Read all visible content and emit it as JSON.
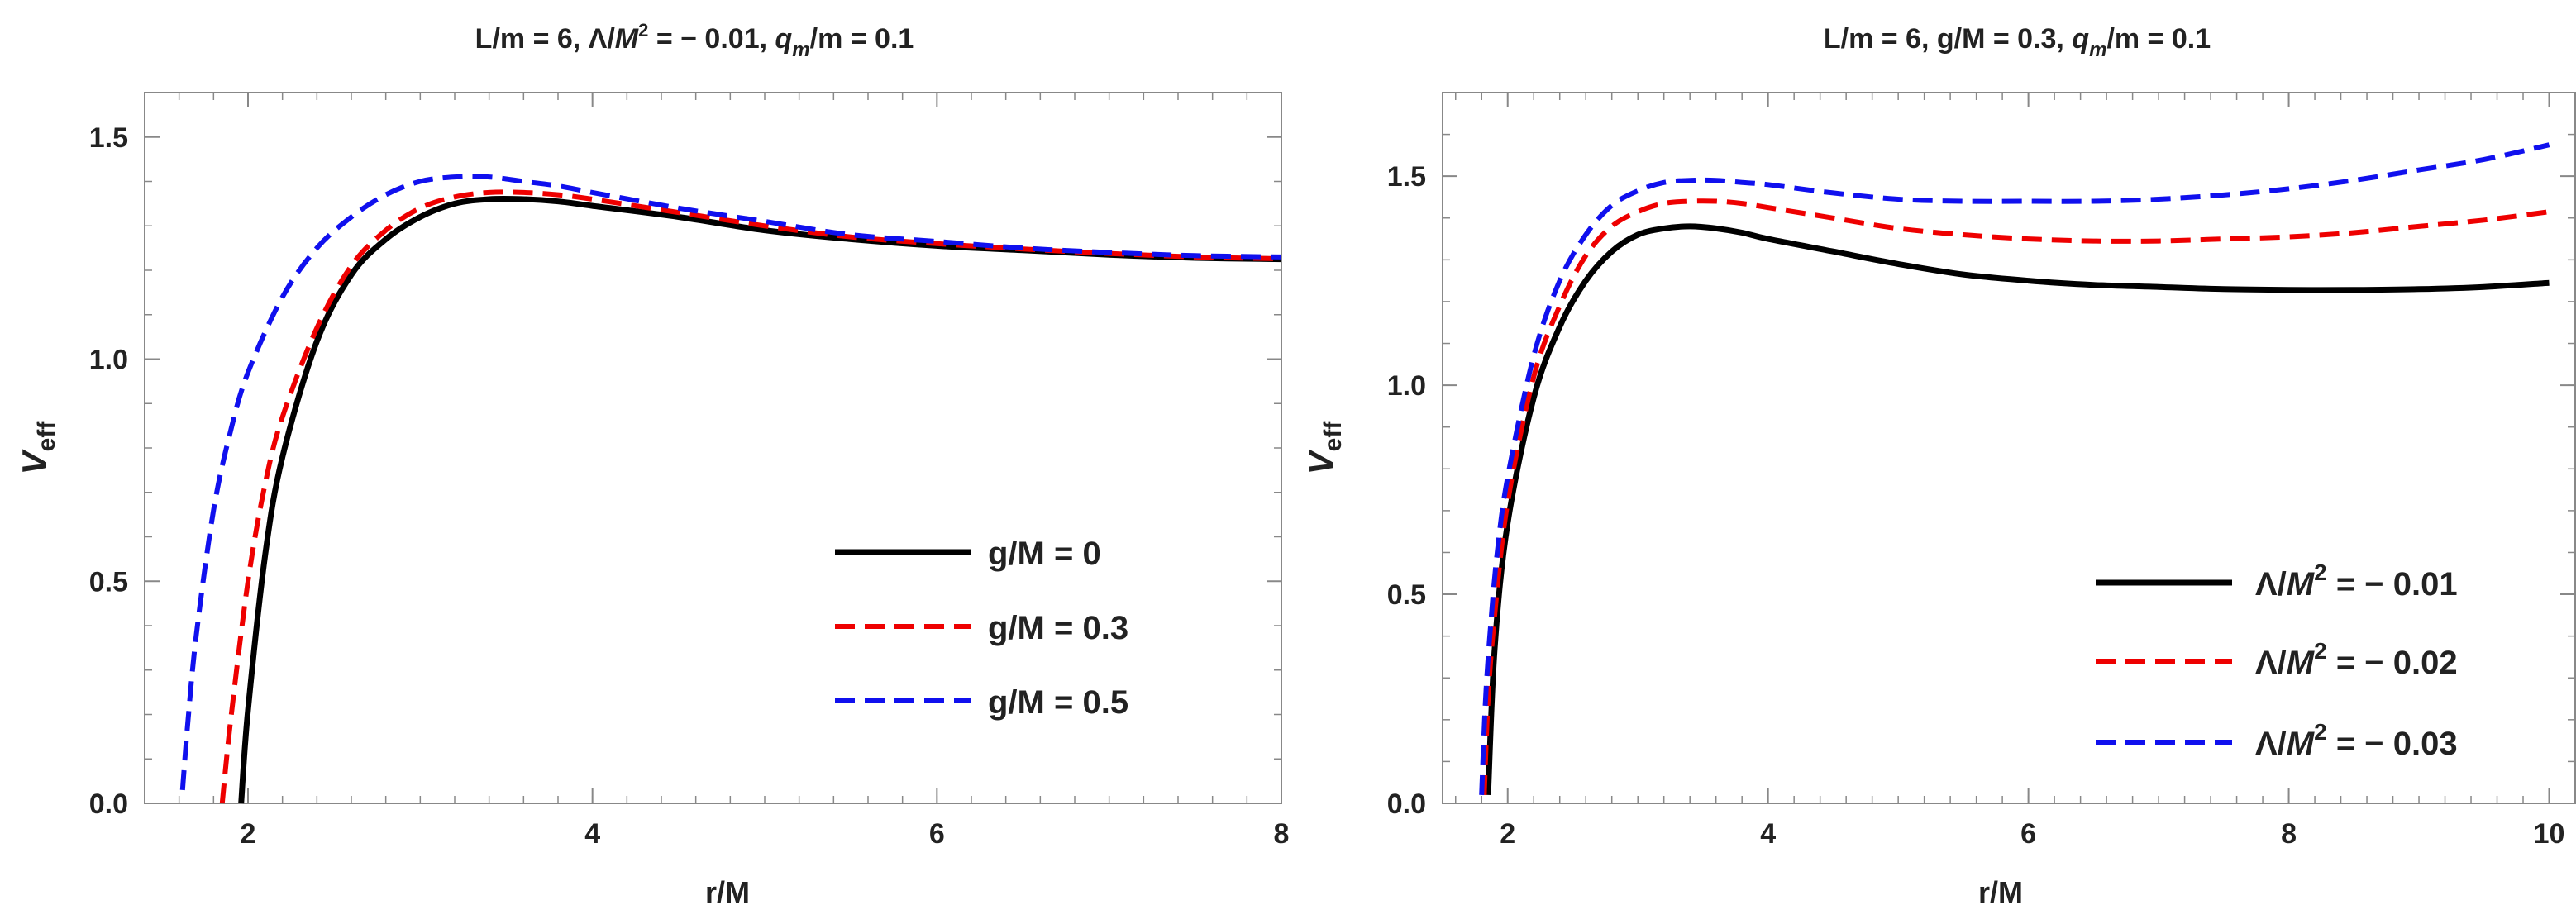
{
  "chart_data": [
    {
      "type": "line",
      "title": "L/m = 6, Λ/M² = − 0.01, q_m/m = 0.1",
      "title_parts": {
        "a": "L/m = 6, Λ/",
        "b": "M",
        "c": "2",
        "d": " = − 0.01, ",
        "e": "q",
        "f": "m",
        "g": "/m = 0.1"
      },
      "xlabel": "r/M",
      "ylabel": "V_eff",
      "ylabel_parts": {
        "main": "V",
        "sub": "eff"
      },
      "xlim": [
        1.4,
        8.0
      ],
      "ylim": [
        0.0,
        1.6
      ],
      "xticks": [
        2,
        4,
        6,
        8
      ],
      "xtick_labels": [
        "2",
        "4",
        "6",
        "8"
      ],
      "yticks": [
        0.0,
        0.5,
        1.0,
        1.5
      ],
      "ytick_labels": [
        "0.0",
        "0.5",
        "1.0",
        "1.5"
      ],
      "legend_position": "lower-right",
      "series": [
        {
          "name": "g/M = 0",
          "legend": {
            "a": "g/M = 0"
          },
          "color": "#000000",
          "dash": "solid",
          "x": [
            1.96,
            2.0,
            2.1,
            2.2,
            2.4,
            2.6,
            2.8,
            3.0,
            3.2,
            3.4,
            3.6,
            3.8,
            4.0,
            4.5,
            5.0,
            5.5,
            6.0,
            6.5,
            7.0,
            7.5,
            8.0
          ],
          "y": [
            0.0,
            0.21,
            0.56,
            0.78,
            1.04,
            1.19,
            1.27,
            1.32,
            1.35,
            1.36,
            1.36,
            1.355,
            1.345,
            1.32,
            1.29,
            1.27,
            1.255,
            1.245,
            1.235,
            1.228,
            1.225
          ]
        },
        {
          "name": "g/M = 0.3",
          "legend": {
            "a": "g/M = 0.3"
          },
          "color": "#ee0000",
          "dash": "dashed",
          "x": [
            1.85,
            1.9,
            2.0,
            2.1,
            2.2,
            2.4,
            2.6,
            2.8,
            3.0,
            3.2,
            3.4,
            3.6,
            3.8,
            4.0,
            4.5,
            5.0,
            5.5,
            6.0,
            6.5,
            7.0,
            7.5,
            8.0
          ],
          "y": [
            0.0,
            0.19,
            0.5,
            0.72,
            0.87,
            1.07,
            1.21,
            1.29,
            1.34,
            1.365,
            1.375,
            1.375,
            1.37,
            1.36,
            1.33,
            1.3,
            1.275,
            1.26,
            1.248,
            1.238,
            1.23,
            1.226
          ]
        },
        {
          "name": "g/M = 0.5",
          "legend": {
            "a": "g/M = 0.5"
          },
          "color": "#1010ee",
          "dash": "dashed",
          "x": [
            1.62,
            1.65,
            1.7,
            1.8,
            1.9,
            2.0,
            2.2,
            2.4,
            2.6,
            2.8,
            3.0,
            3.2,
            3.4,
            3.6,
            3.8,
            4.0,
            4.5,
            5.0,
            5.5,
            6.0,
            6.5,
            7.0,
            7.5,
            8.0
          ],
          "y": [
            0.03,
            0.18,
            0.38,
            0.66,
            0.84,
            0.97,
            1.14,
            1.25,
            1.32,
            1.37,
            1.4,
            1.41,
            1.41,
            1.4,
            1.39,
            1.375,
            1.34,
            1.31,
            1.28,
            1.265,
            1.25,
            1.24,
            1.233,
            1.23
          ]
        }
      ]
    },
    {
      "type": "line",
      "title": "L/m = 6, g/M = 0.3, q_m/m = 0.1",
      "title_parts": {
        "a": "L/m = 6, g/M = 0.3, ",
        "e": "q",
        "f": "m",
        "g": "/m = 0.1"
      },
      "xlabel": "r/M",
      "ylabel": "V_eff",
      "ylabel_parts": {
        "main": "V",
        "sub": "eff"
      },
      "xlim": [
        1.5,
        10.2
      ],
      "ylim": [
        0.0,
        1.7
      ],
      "xticks": [
        2,
        4,
        6,
        8,
        10
      ],
      "xtick_labels": [
        "2",
        "4",
        "6",
        "8",
        "10"
      ],
      "yticks": [
        0.0,
        0.5,
        1.0,
        1.5
      ],
      "ytick_labels": [
        "0.0",
        "0.5",
        "1.0",
        "1.5"
      ],
      "legend_position": "lower-right",
      "series": [
        {
          "name": "Λ/M² = − 0.01",
          "legend": {
            "a": "Λ/",
            "b": "M",
            "c": "2",
            "d": " = − 0.01"
          },
          "color": "#000000",
          "dash": "solid",
          "x": [
            1.85,
            1.9,
            2.0,
            2.2,
            2.4,
            2.6,
            2.8,
            3.0,
            3.2,
            3.4,
            3.6,
            3.8,
            4.0,
            4.5,
            5.0,
            5.5,
            6.0,
            6.5,
            7.0,
            7.5,
            8.0,
            8.5,
            9.0,
            9.5,
            10.0
          ],
          "y": [
            0.02,
            0.37,
            0.67,
            0.97,
            1.14,
            1.25,
            1.32,
            1.36,
            1.375,
            1.38,
            1.375,
            1.365,
            1.35,
            1.32,
            1.29,
            1.265,
            1.25,
            1.24,
            1.235,
            1.23,
            1.228,
            1.228,
            1.23,
            1.235,
            1.245
          ]
        },
        {
          "name": "Λ/M² = − 0.02",
          "legend": {
            "a": "Λ/",
            "b": "M",
            "c": "2",
            "d": " = − 0.02"
          },
          "color": "#ee0000",
          "dash": "dashed",
          "x": [
            1.82,
            1.85,
            1.9,
            2.0,
            2.2,
            2.4,
            2.6,
            2.8,
            3.0,
            3.2,
            3.4,
            3.6,
            3.8,
            4.0,
            4.5,
            5.0,
            5.5,
            6.0,
            6.5,
            7.0,
            7.5,
            8.0,
            8.5,
            9.0,
            9.5,
            10.0
          ],
          "y": [
            0.02,
            0.25,
            0.45,
            0.72,
            1.02,
            1.19,
            1.31,
            1.38,
            1.415,
            1.435,
            1.44,
            1.44,
            1.435,
            1.425,
            1.4,
            1.375,
            1.36,
            1.35,
            1.345,
            1.345,
            1.35,
            1.355,
            1.365,
            1.38,
            1.395,
            1.415
          ]
        },
        {
          "name": "Λ/M² = − 0.03",
          "legend": {
            "a": "Λ/",
            "b": "M",
            "c": "2",
            "d": " = − 0.03"
          },
          "color": "#1010ee",
          "dash": "dashed",
          "x": [
            1.8,
            1.83,
            1.87,
            1.92,
            2.0,
            2.2,
            2.4,
            2.6,
            2.8,
            3.0,
            3.2,
            3.4,
            3.6,
            3.8,
            4.0,
            4.5,
            5.0,
            5.5,
            6.0,
            6.5,
            7.0,
            7.5,
            8.0,
            8.5,
            9.0,
            9.5,
            10.0
          ],
          "y": [
            0.02,
            0.25,
            0.43,
            0.6,
            0.78,
            1.07,
            1.25,
            1.36,
            1.43,
            1.465,
            1.485,
            1.49,
            1.49,
            1.485,
            1.48,
            1.46,
            1.445,
            1.44,
            1.44,
            1.44,
            1.445,
            1.455,
            1.47,
            1.49,
            1.515,
            1.54,
            1.575
          ]
        }
      ]
    }
  ]
}
